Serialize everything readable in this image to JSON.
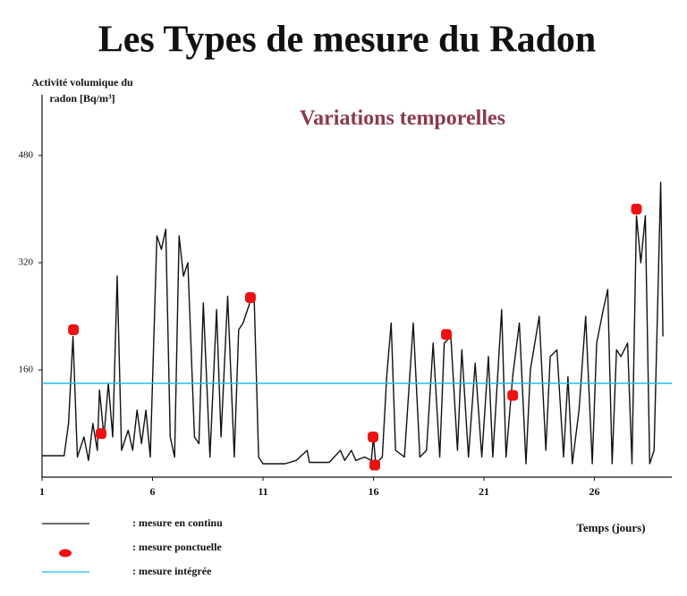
{
  "chart_data": {
    "type": "line",
    "title": "Les Types de mesure du Radon",
    "subtitle": "Variations temporelles",
    "ylabel": [
      "Activité volumique du",
      "radon [Bq/m³]"
    ],
    "xlabel": "Temps (jours)",
    "xlim": [
      1,
      29.5
    ],
    "xticks": [
      1,
      6,
      11,
      16,
      21,
      26
    ],
    "ylim": [
      0,
      560
    ],
    "yticks": [
      160,
      320,
      480
    ],
    "series": [
      {
        "name": ": mesure en continu",
        "style": "line",
        "color": "#111111",
        "x": [
          1,
          2.0,
          2.2,
          2.4,
          2.6,
          2.9,
          3.1,
          3.3,
          3.5,
          3.6,
          3.8,
          4.0,
          4.2,
          4.4,
          4.6,
          4.9,
          5.1,
          5.3,
          5.5,
          5.7,
          5.9,
          6.2,
          6.4,
          6.6,
          6.8,
          7.0,
          7.2,
          7.4,
          7.6,
          7.9,
          8.1,
          8.3,
          8.6,
          8.9,
          9.1,
          9.4,
          9.7,
          9.9,
          10.1,
          10.4,
          10.6,
          10.8,
          11.0,
          12.0,
          12.5,
          13.0,
          13.1,
          14.0,
          14.5,
          14.7,
          15.0,
          15.2,
          15.6,
          15.9,
          16.0,
          16.1,
          16.4,
          16.6,
          16.8,
          17.0,
          17.4,
          17.8,
          18.1,
          18.4,
          18.7,
          19.0,
          19.2,
          19.5,
          19.8,
          20.0,
          20.3,
          20.6,
          20.9,
          21.2,
          21.4,
          21.8,
          22.0,
          22.3,
          22.6,
          22.9,
          23.1,
          23.5,
          23.8,
          24.0,
          24.3,
          24.6,
          24.8,
          25.0,
          25.3,
          25.6,
          25.9,
          26.1,
          26.4,
          26.6,
          26.8,
          27.0,
          27.2,
          27.5,
          27.7,
          27.9,
          28.1,
          28.3,
          28.5,
          28.7,
          29.0,
          29.1
        ],
        "values": [
          32,
          32,
          80,
          210,
          30,
          60,
          25,
          80,
          40,
          130,
          60,
          140,
          60,
          300,
          40,
          70,
          40,
          100,
          50,
          100,
          30,
          360,
          340,
          370,
          60,
          30,
          360,
          300,
          320,
          60,
          50,
          260,
          30,
          250,
          60,
          270,
          30,
          220,
          230,
          260,
          270,
          30,
          20,
          20,
          25,
          40,
          22,
          22,
          40,
          25,
          40,
          25,
          30,
          25,
          60,
          20,
          30,
          150,
          230,
          40,
          30,
          230,
          30,
          40,
          200,
          30,
          200,
          210,
          40,
          190,
          30,
          170,
          30,
          180,
          30,
          250,
          30,
          150,
          230,
          20,
          160,
          240,
          40,
          180,
          190,
          30,
          150,
          20,
          100,
          240,
          20,
          200,
          250,
          280,
          20,
          190,
          180,
          200,
          20,
          390,
          320,
          390,
          20,
          40,
          440,
          210
        ]
      },
      {
        "name": ": mesure ponctuelle",
        "style": "points",
        "color": "#ee1111",
        "x": [
          2.42,
          3.67,
          10.43,
          15.98,
          16.06,
          19.3,
          22.3,
          27.9
        ],
        "values": [
          220,
          65,
          268,
          60,
          18,
          213,
          122,
          400
        ]
      },
      {
        "name": ": mesure intégrée",
        "style": "line",
        "color": "#22bbee",
        "x": [
          1,
          29.5
        ],
        "values": [
          140,
          140
        ]
      }
    ]
  }
}
